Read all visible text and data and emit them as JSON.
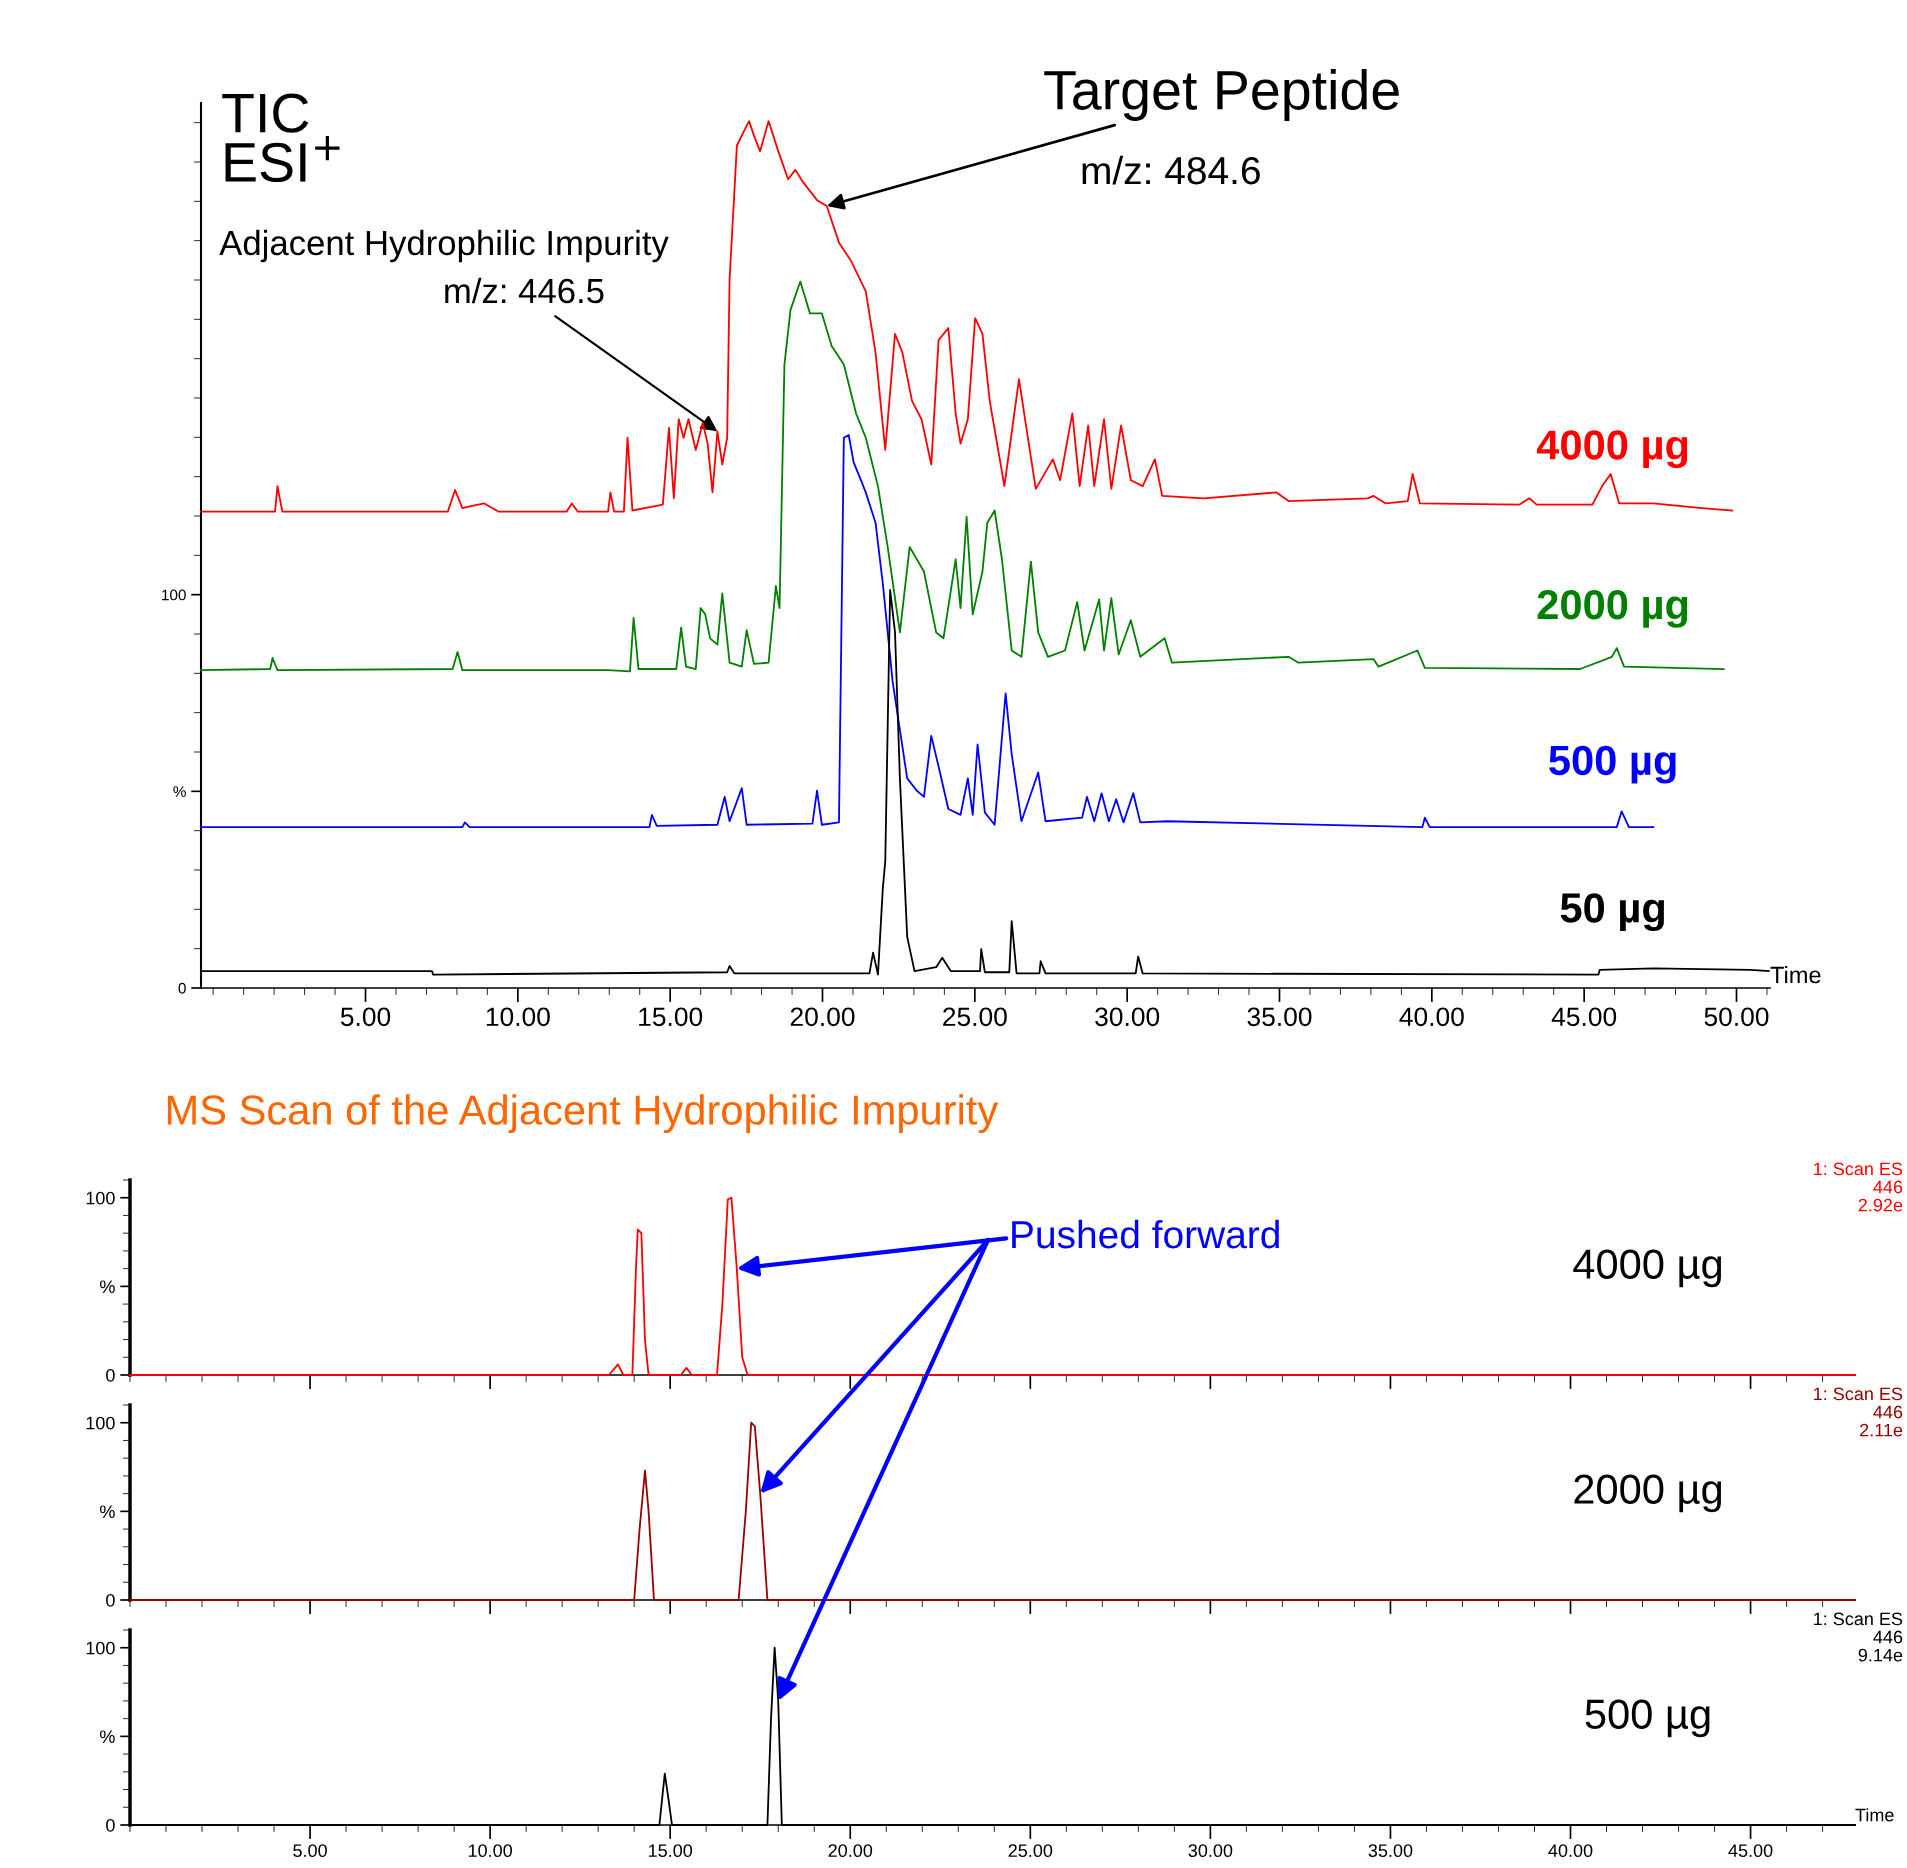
{
  "chart_data": [
    {
      "type": "line",
      "xlabel": "Time",
      "xlim": [
        -0.4,
        51.1
      ],
      "ylim": [
        0,
        225
      ],
      "xticks": [
        {
          "value": 5,
          "label": "5.00"
        },
        {
          "value": 10,
          "label": "10.00"
        },
        {
          "value": 15,
          "label": "15.00"
        },
        {
          "value": 20,
          "label": "20.00"
        },
        {
          "value": 25,
          "label": "25.00"
        },
        {
          "value": 30,
          "label": "30.00"
        },
        {
          "value": 35,
          "label": "35.00"
        },
        {
          "value": 40,
          "label": "40.00"
        },
        {
          "value": 45,
          "label": "45.00"
        },
        {
          "value": 50,
          "label": "50.00"
        }
      ],
      "yticks": [
        {
          "value": 0,
          "label": "0"
        },
        {
          "value": 50,
          "label": "%"
        },
        {
          "value": 100,
          "label": "100"
        }
      ],
      "annotations": [
        "TIC\nESI$^{+}$",
        {
          "text": "Target Peptide",
          "x": 20.14,
          "y": 198.8
        },
        "m/z: 484.6",
        "Adjacent Hydrophilic Impurity",
        {
          "text": "m/z: 446.5",
          "x": 16.55,
          "y": 141.5
        }
      ],
      "grid": false,
      "legend": false,
      "marker": "none",
      "line_style": "solid",
      "series": [
        {
          "name": "4000 µg",
          "color": "#ff0000",
          "x": [
            -0.4,
            2.03,
            2.11,
            2.27,
            7.7,
            7.94,
            8.18,
            8.5,
            8.9,
            9.37,
            11.6,
            11.77,
            11.97,
            12.96,
            13.04,
            13.16,
            13.48,
            13.6,
            13.76,
            14.76,
            14.96,
            15.12,
            15.28,
            15.44,
            15.6,
            15.84,
            16.07,
            16.23,
            16.39,
            16.55,
            16.71,
            16.87,
            16.95,
            17.19,
            17.43,
            17.59,
            17.75,
            17.95,
            18.23,
            18.55,
            18.87,
            19.11,
            19.35,
            19.82,
            20.14,
            20.54,
            20.94,
            21.42,
            21.74,
            22.06,
            22.38,
            22.62,
            22.94,
            23.25,
            23.57,
            23.81,
            24.13,
            24.37,
            24.53,
            24.77,
            25.01,
            25.25,
            25.49,
            25.97,
            26.45,
            26.68,
            27.0,
            27.56,
            27.8,
            28.2,
            28.44,
            28.72,
            28.92,
            29.24,
            29.48,
            29.8,
            30.12,
            30.51,
            30.91,
            31.15,
            32.51,
            34.9,
            35.3,
            37.89,
            38.09,
            38.49,
            39.21,
            39.37,
            39.61,
            42.88,
            43.2,
            43.44,
            45.27,
            45.59,
            45.87,
            46.15,
            47.27,
            48.86,
            49.86
          ],
          "values": [
            121.1,
            121.1,
            127.6,
            121.1,
            121.1,
            126.6,
            122.0,
            122.6,
            123.2,
            121.1,
            121.1,
            123.2,
            121.1,
            121.1,
            126.0,
            121.1,
            121.1,
            139.9,
            121.4,
            122.9,
            142.4,
            124.5,
            144.6,
            139.9,
            144.6,
            136.8,
            143.7,
            138.4,
            126.0,
            141.5,
            133.1,
            139.9,
            180.2,
            214.2,
            218.0,
            220.4,
            216.7,
            212.7,
            220.4,
            212.7,
            205.6,
            208.0,
            205.0,
            200.3,
            198.8,
            189.5,
            184.8,
            177.1,
            161.6,
            136.8,
            166.3,
            161.6,
            149.2,
            144.6,
            133.1,
            164.7,
            167.8,
            146.1,
            138.4,
            144.6,
            170.3,
            166.3,
            149.2,
            127.6,
            154.8,
            143.0,
            126.9,
            134.4,
            129.1,
            146.1,
            127.6,
            143.0,
            127.6,
            144.6,
            126.9,
            143.0,
            129.1,
            127.6,
            134.4,
            125.1,
            124.5,
            126.0,
            123.8,
            124.5,
            125.1,
            123.2,
            123.8,
            130.7,
            123.2,
            122.9,
            124.5,
            122.9,
            122.9,
            127.6,
            130.7,
            123.2,
            123.2,
            122.0,
            121.4
          ]
        },
        {
          "name": "2000 µg",
          "color": "#008000",
          "x": [
            -0.4,
            1.87,
            1.95,
            2.11,
            7.86,
            8.02,
            8.18,
            12.96,
            13.68,
            13.8,
            13.96,
            15.2,
            15.36,
            15.52,
            15.84,
            16.0,
            16.15,
            16.31,
            16.55,
            16.71,
            16.95,
            17.35,
            17.51,
            17.75,
            18.23,
            18.47,
            18.59,
            18.75,
            18.95,
            19.27,
            19.59,
            19.98,
            20.3,
            20.7,
            21.1,
            21.42,
            21.82,
            22.14,
            22.54,
            22.86,
            23.33,
            23.73,
            23.97,
            24.37,
            24.53,
            24.73,
            24.93,
            25.25,
            25.41,
            25.65,
            25.89,
            26.21,
            26.53,
            26.84,
            27.08,
            27.4,
            27.96,
            28.36,
            28.6,
            29.08,
            29.24,
            29.48,
            29.72,
            30.12,
            30.43,
            31.23,
            31.47,
            35.3,
            35.62,
            38.09,
            38.25,
            39.53,
            39.77,
            44.87,
            45.91,
            46.07,
            46.31,
            49.58
          ],
          "values": [
            80.8,
            81.1,
            83.9,
            80.8,
            81.1,
            85.4,
            80.8,
            80.8,
            80.5,
            94.1,
            81.1,
            81.1,
            91.6,
            81.7,
            81.1,
            96.6,
            95.0,
            88.9,
            87.3,
            100.3,
            82.7,
            81.7,
            91.0,
            82.4,
            82.7,
            102.2,
            96.6,
            158.5,
            172.4,
            179.6,
            171.5,
            171.5,
            163.2,
            158.5,
            146.1,
            139.9,
            127.6,
            112.1,
            90.4,
            112.1,
            105.9,
            90.4,
            88.9,
            109.0,
            96.6,
            119.8,
            95.0,
            105.9,
            118.3,
            121.4,
            109.0,
            85.8,
            84.2,
            108.4,
            90.4,
            84.2,
            85.8,
            98.1,
            85.8,
            98.8,
            85.8,
            99.1,
            84.8,
            93.5,
            84.2,
            88.9,
            82.7,
            84.2,
            82.7,
            83.6,
            81.7,
            85.8,
            81.4,
            81.1,
            84.2,
            86.4,
            81.7,
            81.1
          ]
        },
        {
          "name": "500 µg",
          "color": "#0000ff",
          "x": [
            -0.4,
            8.18,
            8.26,
            8.42,
            14.32,
            14.4,
            14.56,
            16.55,
            16.79,
            16.95,
            17.35,
            17.51,
            19.67,
            19.82,
            19.98,
            20.54,
            20.7,
            20.86,
            21.02,
            21.26,
            21.42,
            21.74,
            21.98,
            22.3,
            22.54,
            22.78,
            23.09,
            23.33,
            23.57,
            23.81,
            24.13,
            24.53,
            24.77,
            24.93,
            25.09,
            25.33,
            25.65,
            25.81,
            26.01,
            26.21,
            26.53,
            27.08,
            27.32,
            28.52,
            28.68,
            28.92,
            29.16,
            29.4,
            29.64,
            29.88,
            30.2,
            30.43,
            31.31,
            39.69,
            39.77,
            39.93,
            46.07,
            46.23,
            46.47,
            47.27
          ],
          "values": [
            40.9,
            40.9,
            42.1,
            40.9,
            40.9,
            44.0,
            41.2,
            41.5,
            48.6,
            42.4,
            50.8,
            41.5,
            41.8,
            50.2,
            41.5,
            42.1,
            139.9,
            140.6,
            133.7,
            129.1,
            126.0,
            118.3,
            102.8,
            78.0,
            65.6,
            53.3,
            50.2,
            48.6,
            64.1,
            56.3,
            45.5,
            44.0,
            53.3,
            44.0,
            61.9,
            44.6,
            41.5,
            56.3,
            74.9,
            59.4,
            42.4,
            54.8,
            42.4,
            43.3,
            48.6,
            42.4,
            49.5,
            42.4,
            48.0,
            42.1,
            49.5,
            42.1,
            42.4,
            40.9,
            43.3,
            40.9,
            40.9,
            44.9,
            40.9,
            40.9
          ]
        },
        {
          "name": "50 µg",
          "color": "#000000",
          "x": [
            -0.4,
            7.18,
            7.22,
            16.87,
            16.95,
            17.11,
            21.54,
            21.66,
            21.82,
            21.98,
            22.06,
            22.22,
            22.38,
            22.54,
            22.78,
            23.02,
            23.73,
            23.93,
            24.21,
            25.17,
            25.21,
            25.33,
            26.13,
            26.21,
            26.37,
            27.12,
            27.16,
            27.32,
            30.28,
            30.36,
            30.51,
            45.47,
            45.51,
            47.27,
            50.46,
            51.06
          ],
          "values": [
            4.3,
            4.3,
            3.4,
            4.0,
            5.6,
            3.7,
            3.7,
            9.0,
            3.4,
            25.4,
            32.2,
            101.2,
            90.4,
            53.3,
            13.0,
            4.3,
            5.3,
            7.7,
            4.3,
            4.3,
            9.9,
            4.0,
            4.0,
            17.0,
            3.7,
            3.7,
            6.8,
            3.7,
            3.7,
            8.0,
            3.7,
            3.4,
            4.6,
            5.0,
            4.6,
            4.3
          ]
        }
      ]
    },
    {
      "type": "line",
      "title": "MS Scan of the Adjacent Hydrophilic Impurity",
      "xlim": [
        0,
        47.9
      ],
      "ylim": [
        0,
        110
      ],
      "xticks": [
        {
          "value": 5,
          "label": null
        },
        {
          "value": 10,
          "label": null
        },
        {
          "value": 15,
          "label": null
        },
        {
          "value": 20,
          "label": null
        },
        {
          "value": 25,
          "label": null
        },
        {
          "value": 30,
          "label": null
        },
        {
          "value": 35,
          "label": null
        },
        {
          "value": 40,
          "label": null
        },
        {
          "value": 45,
          "label": null
        }
      ],
      "yticks": [
        {
          "value": 0,
          "label": "0"
        },
        {
          "value": 50,
          "label": "%"
        },
        {
          "value": 100,
          "label": "100"
        }
      ],
      "tick_labels": "y",
      "grid": false,
      "legend": false,
      "annotations": [
        "1: Scan ES\n446\n2.92e",
        "4000 µg",
        {
          "text": "Pushed forward",
          "x": 16.85,
          "y": 60
        }
      ],
      "series": [
        {
          "color": "#ff0000",
          "x": [
            0,
            13.3,
            13.55,
            13.7,
            13.95,
            14.05,
            14.1,
            14.2,
            14.3,
            14.4,
            15.3,
            15.45,
            15.6,
            16.3,
            16.45,
            16.6,
            16.7,
            16.85,
            17.0,
            17.15,
            47.9
          ],
          "values": [
            0,
            0,
            6,
            0,
            0,
            60,
            82,
            80,
            20,
            0,
            0,
            4,
            0,
            0,
            40,
            99,
            100,
            60,
            10,
            0,
            0
          ]
        }
      ]
    },
    {
      "type": "line",
      "xlim": [
        0,
        47.9
      ],
      "ylim": [
        0,
        110
      ],
      "xticks": [
        {
          "value": 5,
          "label": null
        },
        {
          "value": 10,
          "label": null
        },
        {
          "value": 15,
          "label": null
        },
        {
          "value": 20,
          "label": null
        },
        {
          "value": 25,
          "label": null
        },
        {
          "value": 30,
          "label": null
        },
        {
          "value": 35,
          "label": null
        },
        {
          "value": 40,
          "label": null
        },
        {
          "value": 45,
          "label": null
        }
      ],
      "yticks": [
        {
          "value": 0,
          "label": "0"
        },
        {
          "value": 50,
          "label": "%"
        },
        {
          "value": 100,
          "label": "100"
        }
      ],
      "tick_labels": "y",
      "grid": false,
      "legend": false,
      "annotations": [
        "1: Scan ES\n446\n2.11e",
        "2000 µg"
      ],
      "series": [
        {
          "color": "#990000",
          "x": [
            0,
            14.0,
            14.15,
            14.3,
            14.4,
            14.55,
            16.9,
            17.1,
            17.25,
            17.35,
            17.5,
            17.7,
            47.9
          ],
          "values": [
            0,
            0,
            40,
            73,
            50,
            0,
            0,
            50,
            100,
            98,
            60,
            0,
            0
          ]
        }
      ]
    },
    {
      "type": "line",
      "xlabel": "Time",
      "xlim": [
        0,
        47.9
      ],
      "ylim": [
        0,
        110
      ],
      "xticks": [
        {
          "value": 5,
          "label": "5.00"
        },
        {
          "value": 10,
          "label": "10.00"
        },
        {
          "value": 15,
          "label": "15.00"
        },
        {
          "value": 20,
          "label": "20.00"
        },
        {
          "value": 25,
          "label": "25.00"
        },
        {
          "value": 30,
          "label": "30.00"
        },
        {
          "value": 35,
          "label": "35.00"
        },
        {
          "value": 40,
          "label": "40.00"
        },
        {
          "value": 45,
          "label": "45.00"
        }
      ],
      "yticks": [
        {
          "value": 0,
          "label": "0"
        },
        {
          "value": 50,
          "label": "%"
        },
        {
          "value": 100,
          "label": "100"
        }
      ],
      "grid": false,
      "legend": false,
      "annotations": [
        "1: Scan ES\n446\n9.14e",
        "500 µg"
      ],
      "series": [
        {
          "color": "#000000",
          "x": [
            0,
            14.7,
            14.85,
            14.95,
            15.05,
            17.7,
            17.8,
            17.9,
            18.0,
            18.1,
            47.9
          ],
          "values": [
            0,
            0,
            29,
            15,
            0,
            0,
            60,
            100,
            70,
            0,
            0
          ]
        }
      ]
    }
  ]
}
